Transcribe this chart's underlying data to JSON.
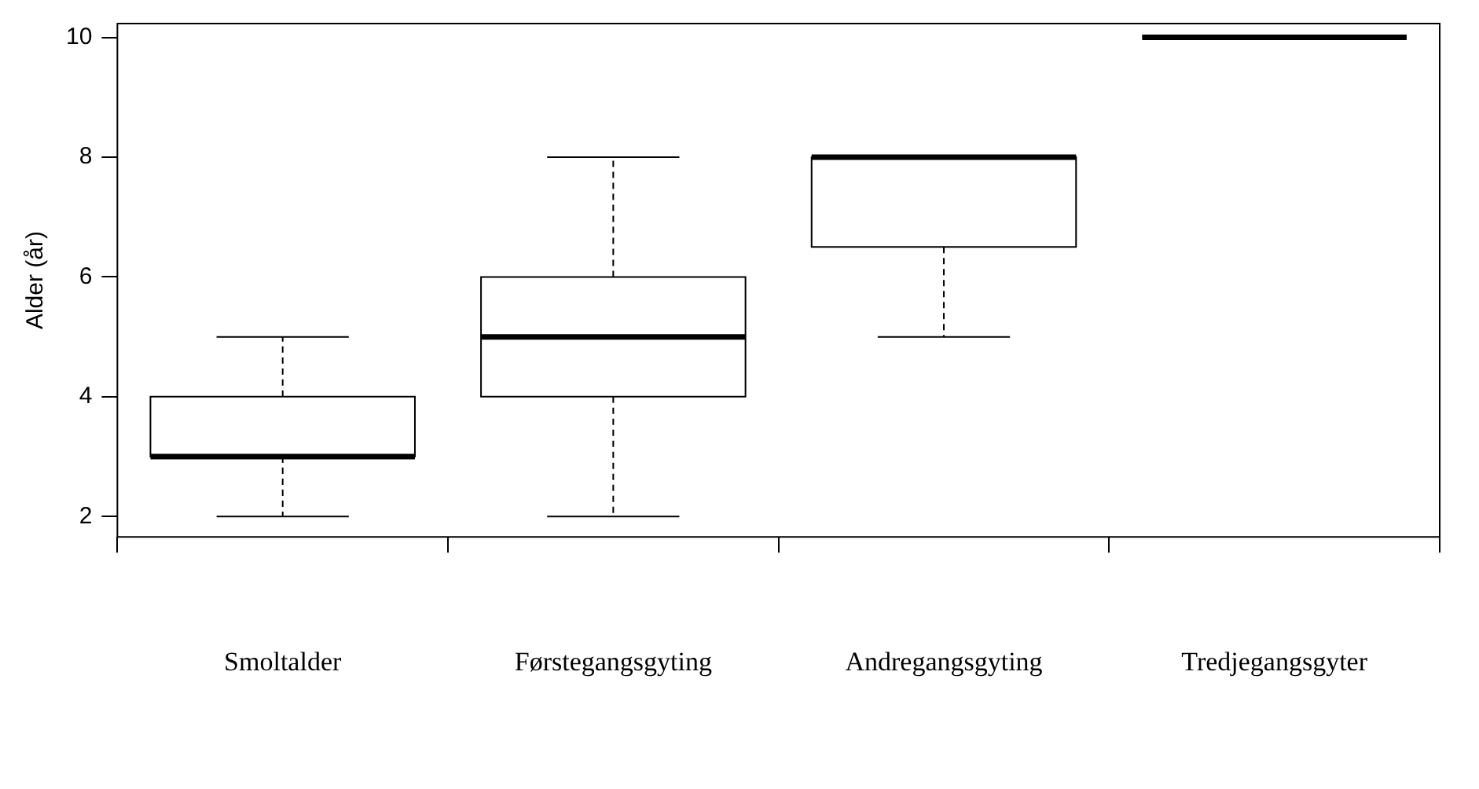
{
  "chart_data": {
    "type": "box",
    "ylabel": "Alder (år)",
    "categories": [
      "Smoltalder",
      "Førstegangsgyting",
      "Andregangsgyting",
      "Tredjegangsgyter"
    ],
    "boxes": [
      {
        "low": 2,
        "q1": 3,
        "median": 3,
        "q3": 4,
        "high": 5
      },
      {
        "low": 2,
        "q1": 4,
        "median": 5,
        "q3": 6,
        "high": 8
      },
      {
        "low": 5,
        "q1": 6.5,
        "median": 8,
        "q3": 8,
        "high": 8
      },
      {
        "low": 10,
        "q1": 10,
        "median": 10,
        "q3": 10,
        "high": 10
      }
    ],
    "ylim": [
      1.66,
      10.23
    ],
    "yticks": [
      2,
      4,
      6,
      8,
      10
    ],
    "grid": false,
    "legend": false
  }
}
